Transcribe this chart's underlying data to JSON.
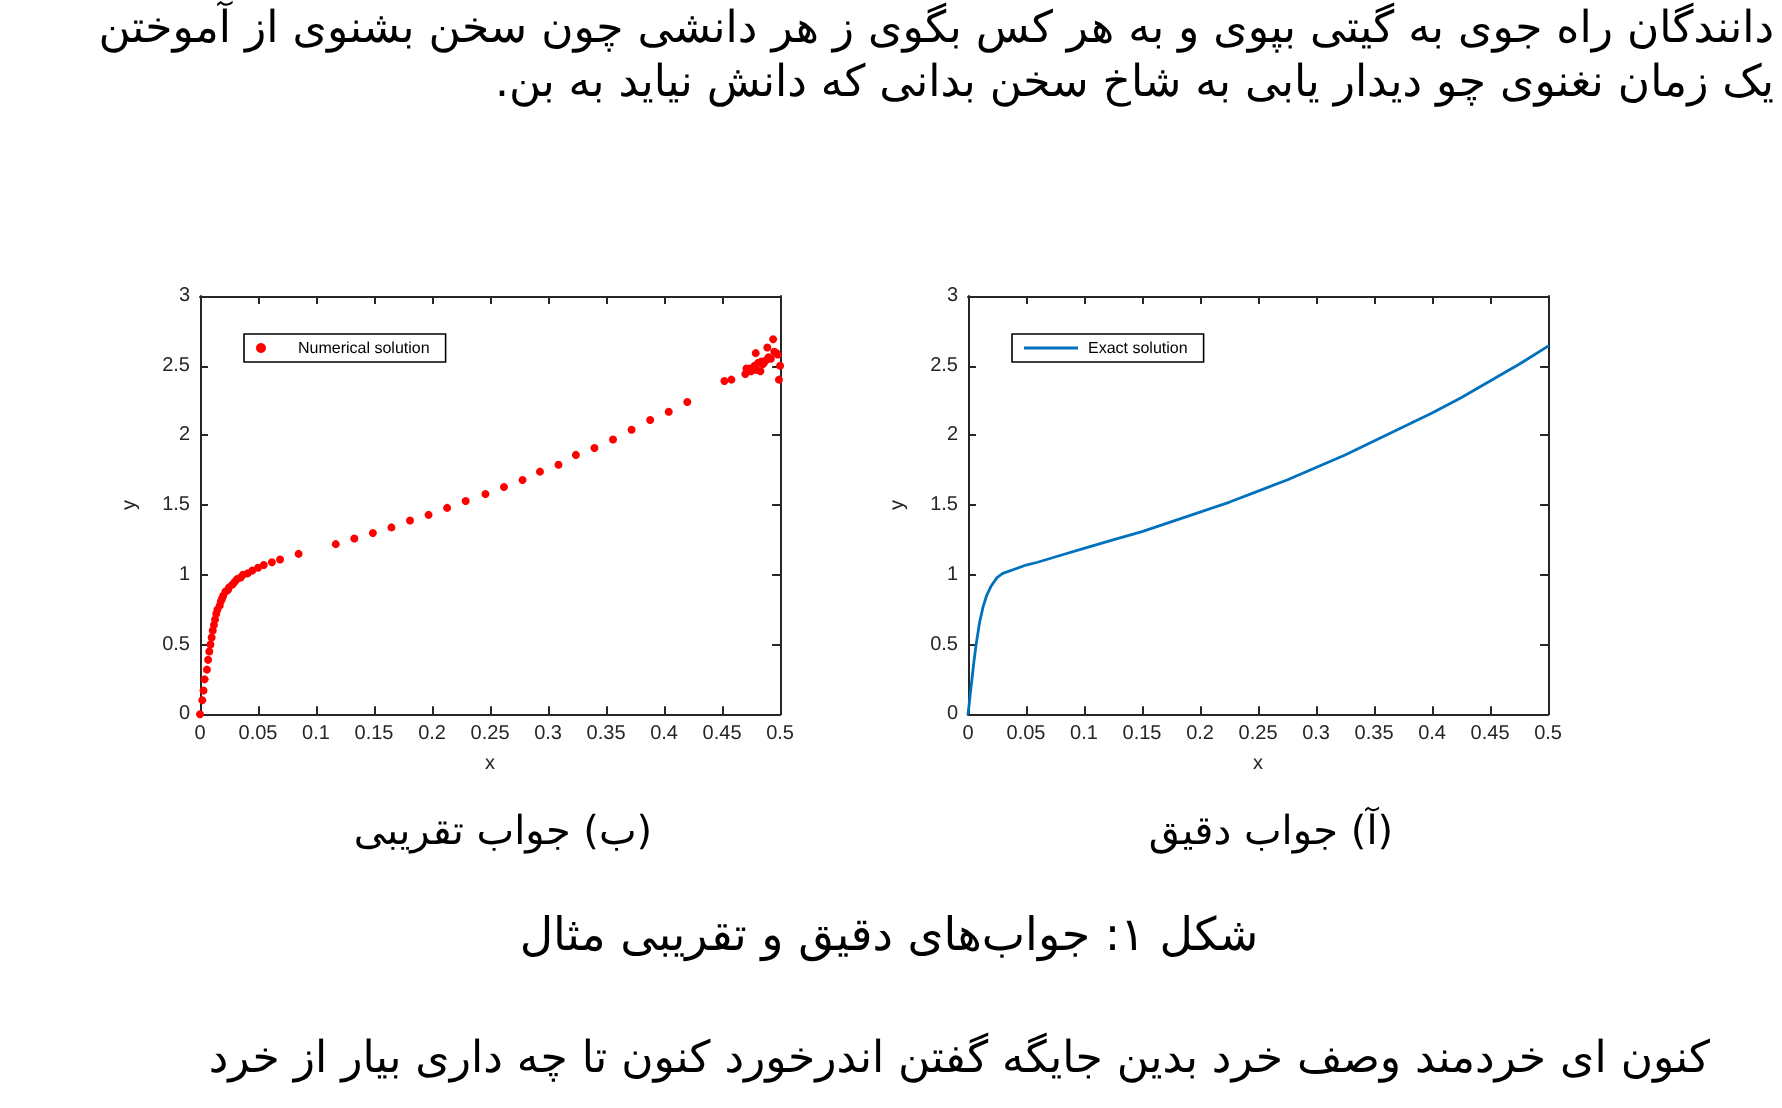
{
  "chart_data": [
    {
      "type": "line",
      "title": "(آ) جواب دقیق",
      "xlabel": "x",
      "ylabel": "y",
      "x": [
        0,
        0.001,
        0.002,
        0.003,
        0.005,
        0.007,
        0.01,
        0.013,
        0.016,
        0.02,
        0.025,
        0.03,
        0.04,
        0.05,
        0.06,
        0.08,
        0.1,
        0.125,
        0.15,
        0.175,
        0.2,
        0.225,
        0.25,
        0.275,
        0.3,
        0.325,
        0.35,
        0.375,
        0.4,
        0.425,
        0.45,
        0.475,
        0.5
      ],
      "series": [
        {
          "name": "Exact solution",
          "color": "#0072bd",
          "values": [
            0,
            0.07,
            0.15,
            0.22,
            0.37,
            0.5,
            0.66,
            0.77,
            0.85,
            0.92,
            0.98,
            1.01,
            1.04,
            1.07,
            1.09,
            1.14,
            1.19,
            1.25,
            1.31,
            1.38,
            1.45,
            1.52,
            1.6,
            1.68,
            1.77,
            1.86,
            1.96,
            2.06,
            2.16,
            2.27,
            2.39,
            2.51,
            2.64
          ]
        }
      ],
      "xlim": [
        0,
        0.5
      ],
      "ylim": [
        0,
        3
      ],
      "xticks": [
        0,
        0.05,
        0.1,
        0.15,
        0.2,
        0.25,
        0.3,
        0.35,
        0.4,
        0.45,
        0.5
      ],
      "yticks": [
        0,
        0.5,
        1,
        1.5,
        2,
        2.5,
        3
      ],
      "legend": "top left",
      "line_style": "solid",
      "annotations": [
        "دانندگان راه جوی به گیتی بپوی و به هر کس بگوی ز هر دانشی چون سخن بشنوی از آموختن",
        "یک زمان نغنوی چو دیدار یابی به شاخ سخن بدانی که دانش نیاید به بن."
      ]
    },
    {
      "type": "scatter",
      "title": "(ب) جواب تقریبی",
      "xlabel": "x",
      "ylabel": "y",
      "x": [
        0,
        0.002,
        0.003,
        0.004,
        0.006,
        0.007,
        0.008,
        0.009,
        0.01,
        0.011,
        0.012,
        0.013,
        0.014,
        0.015,
        0.017,
        0.018,
        0.019,
        0.02,
        0.022,
        0.024,
        0.025,
        0.028,
        0.03,
        0.032,
        0.035,
        0.037,
        0.041,
        0.045,
        0.05,
        0.055,
        0.062,
        0.069,
        0.085,
        0.117,
        0.133,
        0.149,
        0.165,
        0.181,
        0.197,
        0.213,
        0.229,
        0.246,
        0.262,
        0.278,
        0.293,
        0.309,
        0.324,
        0.34,
        0.356,
        0.372,
        0.388,
        0.404,
        0.42,
        0.452,
        0.458,
        0.47,
        0.471,
        0.474,
        0.475,
        0.477,
        0.478,
        0.479,
        0.48,
        0.481,
        0.483,
        0.484,
        0.485,
        0.486,
        0.488,
        0.489,
        0.49,
        0.492,
        0.494,
        0.495,
        0.497,
        0.498,
        0.5,
        0.499
      ],
      "series": [
        {
          "name": "Numerical solution",
          "color": "#ff0000",
          "values": [
            0,
            0.1,
            0.17,
            0.25,
            0.32,
            0.39,
            0.45,
            0.5,
            0.55,
            0.6,
            0.64,
            0.68,
            0.72,
            0.75,
            0.78,
            0.81,
            0.83,
            0.85,
            0.88,
            0.89,
            0.91,
            0.93,
            0.95,
            0.97,
            0.98,
            1,
            1.01,
            1.03,
            1.05,
            1.07,
            1.09,
            1.11,
            1.15,
            1.22,
            1.26,
            1.3,
            1.34,
            1.39,
            1.43,
            1.48,
            1.53,
            1.58,
            1.63,
            1.68,
            1.74,
            1.79,
            1.86,
            1.91,
            1.97,
            2.04,
            2.11,
            2.17,
            2.24,
            2.39,
            2.4,
            2.44,
            2.48,
            2.48,
            2.46,
            2.47,
            2.5,
            2.59,
            2.47,
            2.52,
            2.46,
            2.53,
            2.51,
            2.52,
            2.54,
            2.63,
            2.56,
            2.55,
            2.69,
            2.6,
            2.59,
            2.58,
            2.5,
            2.4
          ]
        }
      ],
      "xlim": [
        0,
        0.5
      ],
      "ylim": [
        0,
        3
      ],
      "xticks": [
        0,
        0.05,
        0.1,
        0.15,
        0.2,
        0.25,
        0.3,
        0.35,
        0.4,
        0.45,
        0.5
      ],
      "yticks": [
        0,
        0.5,
        1,
        1.5,
        2,
        2.5,
        3
      ],
      "legend": "top left",
      "marker": "circle",
      "annotations": [
        "شکل ۱: جواب‌های دقیق و تقریبی مثال",
        "کنون ای خردمند وصف خرد بدین جایگه گفتن اندرخورد کنون تا چه داری بیار از خرد"
      ]
    }
  ]
}
